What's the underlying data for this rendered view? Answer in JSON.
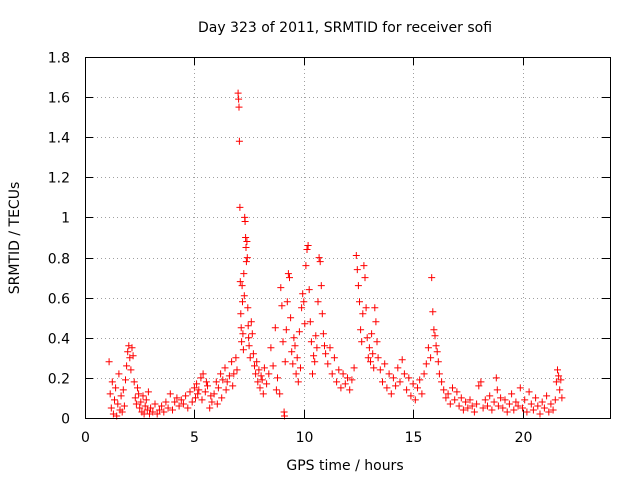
{
  "chart_data": {
    "type": "scatter",
    "title": "Day 323 of 2011, SRMTID for receiver sofi",
    "xlabel": "GPS time / hours",
    "ylabel": "SRMTID / TECUs",
    "xlim": [
      0,
      24
    ],
    "ylim": [
      0,
      1.8
    ],
    "xticks": [
      0,
      5,
      10,
      15,
      20
    ],
    "xtick_labels": [
      "0",
      "5",
      "10",
      "15",
      "20"
    ],
    "yticks": [
      0,
      0.2,
      0.4,
      0.6,
      0.8,
      1.0,
      1.2,
      1.4,
      1.6,
      1.8
    ],
    "ytick_labels": [
      "0",
      "0.2",
      "0.4",
      "0.6",
      "0.8",
      "1",
      "1.2",
      "1.4",
      "1.6",
      "1.8"
    ],
    "grid": true,
    "series_color": "#ff0000",
    "marker": "plus",
    "series": [
      {
        "name": "SRMTID",
        "points": [
          [
            1.1,
            0.28
          ],
          [
            1.15,
            0.12
          ],
          [
            1.2,
            0.05
          ],
          [
            1.25,
            0.18
          ],
          [
            1.3,
            0.02
          ],
          [
            1.35,
            0.09
          ],
          [
            1.4,
            0.15
          ],
          [
            1.45,
            0.01
          ],
          [
            1.5,
            0.07
          ],
          [
            1.55,
            0.22
          ],
          [
            1.6,
            0.04
          ],
          [
            1.65,
            0.11
          ],
          [
            1.7,
            0.03
          ],
          [
            1.75,
            0.14
          ],
          [
            1.8,
            0.06
          ],
          [
            1.85,
            0.19
          ],
          [
            1.9,
            0.26
          ],
          [
            1.95,
            0.33
          ],
          [
            2.0,
            0.36
          ],
          [
            2.05,
            0.3
          ],
          [
            2.1,
            0.24
          ],
          [
            2.15,
            0.35
          ],
          [
            2.2,
            0.31
          ],
          [
            2.25,
            0.18
          ],
          [
            2.3,
            0.1
          ],
          [
            2.35,
            0.07
          ],
          [
            2.4,
            0.15
          ],
          [
            2.45,
            0.12
          ],
          [
            2.5,
            0.05
          ],
          [
            2.55,
            0.08
          ],
          [
            2.6,
            0.03
          ],
          [
            2.65,
            0.11
          ],
          [
            2.7,
            0.02
          ],
          [
            2.75,
            0.06
          ],
          [
            2.8,
            0.09
          ],
          [
            2.85,
            0.04
          ],
          [
            2.9,
            0.13
          ],
          [
            2.95,
            0.02
          ],
          [
            3.0,
            0.05
          ],
          [
            3.1,
            0.03
          ],
          [
            3.2,
            0.07
          ],
          [
            3.3,
            0.02
          ],
          [
            3.4,
            0.04
          ],
          [
            3.5,
            0.06
          ],
          [
            3.6,
            0.03
          ],
          [
            3.7,
            0.08
          ],
          [
            3.8,
            0.05
          ],
          [
            3.9,
            0.12
          ],
          [
            4.0,
            0.04
          ],
          [
            4.1,
            0.08
          ],
          [
            4.2,
            0.1
          ],
          [
            4.3,
            0.06
          ],
          [
            4.4,
            0.09
          ],
          [
            4.5,
            0.07
          ],
          [
            4.6,
            0.11
          ],
          [
            4.7,
            0.05
          ],
          [
            4.8,
            0.13
          ],
          [
            4.9,
            0.08
          ],
          [
            5.0,
            0.15
          ],
          [
            5.05,
            0.1
          ],
          [
            5.1,
            0.17
          ],
          [
            5.15,
            0.12
          ],
          [
            5.2,
            0.14
          ],
          [
            5.3,
            0.2
          ],
          [
            5.35,
            0.09
          ],
          [
            5.4,
            0.22
          ],
          [
            5.5,
            0.13
          ],
          [
            5.55,
            0.18
          ],
          [
            5.6,
            0.16
          ],
          [
            5.7,
            0.05
          ],
          [
            5.75,
            0.11
          ],
          [
            5.8,
            0.08
          ],
          [
            5.9,
            0.12
          ],
          [
            6.0,
            0.18
          ],
          [
            6.05,
            0.07
          ],
          [
            6.1,
            0.15
          ],
          [
            6.2,
            0.22
          ],
          [
            6.25,
            0.1
          ],
          [
            6.3,
            0.19
          ],
          [
            6.4,
            0.25
          ],
          [
            6.45,
            0.14
          ],
          [
            6.5,
            0.18
          ],
          [
            6.6,
            0.21
          ],
          [
            6.7,
            0.28
          ],
          [
            6.75,
            0.16
          ],
          [
            6.8,
            0.22
          ],
          [
            6.9,
            0.3
          ],
          [
            6.95,
            0.24
          ],
          [
            7.0,
            1.62
          ],
          [
            7.02,
            1.59
          ],
          [
            7.04,
            1.55
          ],
          [
            7.06,
            1.38
          ],
          [
            7.08,
            1.05
          ],
          [
            7.1,
            0.68
          ],
          [
            7.12,
            0.52
          ],
          [
            7.14,
            0.45
          ],
          [
            7.16,
            0.38
          ],
          [
            7.18,
            0.66
          ],
          [
            7.2,
            0.58
          ],
          [
            7.22,
            0.42
          ],
          [
            7.24,
            0.34
          ],
          [
            7.26,
            0.72
          ],
          [
            7.28,
            0.61
          ],
          [
            7.3,
            1.0
          ],
          [
            7.32,
            0.98
          ],
          [
            7.34,
            0.9
          ],
          [
            7.36,
            0.85
          ],
          [
            7.38,
            0.78
          ],
          [
            7.4,
            0.88
          ],
          [
            7.42,
            0.8
          ],
          [
            7.44,
            0.55
          ],
          [
            7.46,
            0.46
          ],
          [
            7.48,
            0.4
          ],
          [
            7.5,
            0.36
          ],
          [
            7.55,
            0.3
          ],
          [
            7.6,
            0.48
          ],
          [
            7.65,
            0.42
          ],
          [
            7.7,
            0.32
          ],
          [
            7.75,
            0.26
          ],
          [
            7.8,
            0.22
          ],
          [
            7.85,
            0.28
          ],
          [
            7.9,
            0.18
          ],
          [
            7.95,
            0.24
          ],
          [
            8.0,
            0.15
          ],
          [
            8.05,
            0.21
          ],
          [
            8.1,
            0.19
          ],
          [
            8.15,
            0.12
          ],
          [
            8.2,
            0.25
          ],
          [
            8.3,
            0.17
          ],
          [
            8.4,
            0.22
          ],
          [
            8.5,
            0.35
          ],
          [
            8.6,
            0.26
          ],
          [
            8.7,
            0.45
          ],
          [
            8.75,
            0.14
          ],
          [
            8.8,
            0.2
          ],
          [
            8.9,
            0.12
          ],
          [
            8.95,
            0.65
          ],
          [
            9.0,
            0.56
          ],
          [
            9.05,
            0.38
          ],
          [
            9.1,
            0.03
          ],
          [
            9.12,
            0.01
          ],
          [
            9.15,
            0.28
          ],
          [
            9.2,
            0.44
          ],
          [
            9.25,
            0.58
          ],
          [
            9.3,
            0.72
          ],
          [
            9.35,
            0.7
          ],
          [
            9.4,
            0.5
          ],
          [
            9.45,
            0.33
          ],
          [
            9.5,
            0.27
          ],
          [
            9.55,
            0.4
          ],
          [
            9.6,
            0.36
          ],
          [
            9.65,
            0.22
          ],
          [
            9.7,
            0.3
          ],
          [
            9.75,
            0.18
          ],
          [
            9.8,
            0.43
          ],
          [
            9.85,
            0.25
          ],
          [
            9.9,
            0.55
          ],
          [
            9.95,
            0.62
          ],
          [
            10.0,
            0.58
          ],
          [
            10.05,
            0.47
          ],
          [
            10.1,
            0.76
          ],
          [
            10.15,
            0.84
          ],
          [
            10.2,
            0.86
          ],
          [
            10.25,
            0.64
          ],
          [
            10.3,
            0.48
          ],
          [
            10.35,
            0.38
          ],
          [
            10.4,
            0.22
          ],
          [
            10.45,
            0.31
          ],
          [
            10.5,
            0.28
          ],
          [
            10.55,
            0.41
          ],
          [
            10.6,
            0.35
          ],
          [
            10.65,
            0.58
          ],
          [
            10.7,
            0.8
          ],
          [
            10.75,
            0.78
          ],
          [
            10.8,
            0.66
          ],
          [
            10.85,
            0.52
          ],
          [
            10.9,
            0.42
          ],
          [
            10.95,
            0.36
          ],
          [
            11.0,
            0.32
          ],
          [
            11.1,
            0.27
          ],
          [
            11.2,
            0.35
          ],
          [
            11.3,
            0.22
          ],
          [
            11.4,
            0.3
          ],
          [
            11.5,
            0.18
          ],
          [
            11.6,
            0.24
          ],
          [
            11.7,
            0.15
          ],
          [
            11.8,
            0.22
          ],
          [
            11.9,
            0.17
          ],
          [
            12.0,
            0.2
          ],
          [
            12.1,
            0.14
          ],
          [
            12.2,
            0.19
          ],
          [
            12.3,
            0.25
          ],
          [
            12.4,
            0.81
          ],
          [
            12.45,
            0.74
          ],
          [
            12.5,
            0.66
          ],
          [
            12.55,
            0.58
          ],
          [
            12.6,
            0.44
          ],
          [
            12.65,
            0.38
          ],
          [
            12.7,
            0.52
          ],
          [
            12.75,
            0.76
          ],
          [
            12.8,
            0.7
          ],
          [
            12.85,
            0.55
          ],
          [
            12.9,
            0.4
          ],
          [
            12.95,
            0.3
          ],
          [
            13.0,
            0.35
          ],
          [
            13.05,
            0.28
          ],
          [
            13.1,
            0.42
          ],
          [
            13.15,
            0.32
          ],
          [
            13.2,
            0.25
          ],
          [
            13.25,
            0.55
          ],
          [
            13.3,
            0.48
          ],
          [
            13.35,
            0.38
          ],
          [
            13.4,
            0.3
          ],
          [
            13.5,
            0.24
          ],
          [
            13.6,
            0.18
          ],
          [
            13.7,
            0.27
          ],
          [
            13.8,
            0.15
          ],
          [
            13.9,
            0.22
          ],
          [
            14.0,
            0.12
          ],
          [
            14.1,
            0.2
          ],
          [
            14.2,
            0.16
          ],
          [
            14.3,
            0.25
          ],
          [
            14.4,
            0.18
          ],
          [
            14.5,
            0.29
          ],
          [
            14.6,
            0.22
          ],
          [
            14.7,
            0.14
          ],
          [
            14.8,
            0.2
          ],
          [
            14.9,
            0.11
          ],
          [
            15.0,
            0.17
          ],
          [
            15.1,
            0.09
          ],
          [
            15.2,
            0.15
          ],
          [
            15.3,
            0.19
          ],
          [
            15.4,
            0.12
          ],
          [
            15.5,
            0.22
          ],
          [
            15.6,
            0.27
          ],
          [
            15.7,
            0.35
          ],
          [
            15.8,
            0.3
          ],
          [
            15.85,
            0.7
          ],
          [
            15.9,
            0.53
          ],
          [
            15.95,
            0.44
          ],
          [
            16.0,
            0.41
          ],
          [
            16.05,
            0.36
          ],
          [
            16.1,
            0.33
          ],
          [
            16.15,
            0.28
          ],
          [
            16.2,
            0.22
          ],
          [
            16.3,
            0.18
          ],
          [
            16.4,
            0.14
          ],
          [
            16.5,
            0.1
          ],
          [
            16.6,
            0.12
          ],
          [
            16.7,
            0.07
          ],
          [
            16.8,
            0.15
          ],
          [
            16.9,
            0.09
          ],
          [
            17.0,
            0.13
          ],
          [
            17.1,
            0.06
          ],
          [
            17.2,
            0.1
          ],
          [
            17.3,
            0.04
          ],
          [
            17.4,
            0.08
          ],
          [
            17.5,
            0.05
          ],
          [
            17.6,
            0.09
          ],
          [
            17.7,
            0.06
          ],
          [
            17.8,
            0.03
          ],
          [
            17.9,
            0.07
          ],
          [
            18.0,
            0.16
          ],
          [
            18.1,
            0.18
          ],
          [
            18.2,
            0.05
          ],
          [
            18.3,
            0.09
          ],
          [
            18.4,
            0.06
          ],
          [
            18.5,
            0.11
          ],
          [
            18.6,
            0.04
          ],
          [
            18.7,
            0.08
          ],
          [
            18.8,
            0.2
          ],
          [
            18.85,
            0.14
          ],
          [
            18.9,
            0.06
          ],
          [
            19.0,
            0.1
          ],
          [
            19.1,
            0.05
          ],
          [
            19.2,
            0.09
          ],
          [
            19.3,
            0.03
          ],
          [
            19.4,
            0.07
          ],
          [
            19.5,
            0.12
          ],
          [
            19.6,
            0.04
          ],
          [
            19.7,
            0.08
          ],
          [
            19.8,
            0.06
          ],
          [
            19.9,
            0.15
          ],
          [
            20.0,
            0.05
          ],
          [
            20.1,
            0.09
          ],
          [
            20.2,
            0.03
          ],
          [
            20.3,
            0.13
          ],
          [
            20.4,
            0.07
          ],
          [
            20.5,
            0.04
          ],
          [
            20.6,
            0.1
          ],
          [
            20.7,
            0.06
          ],
          [
            20.8,
            0.02
          ],
          [
            20.9,
            0.08
          ],
          [
            21.0,
            0.05
          ],
          [
            21.1,
            0.11
          ],
          [
            21.2,
            0.03
          ],
          [
            21.3,
            0.07
          ],
          [
            21.4,
            0.04
          ],
          [
            21.5,
            0.09
          ],
          [
            21.55,
            0.18
          ],
          [
            21.6,
            0.24
          ],
          [
            21.65,
            0.21
          ],
          [
            21.7,
            0.14
          ],
          [
            21.75,
            0.19
          ],
          [
            21.8,
            0.1
          ]
        ]
      }
    ]
  }
}
